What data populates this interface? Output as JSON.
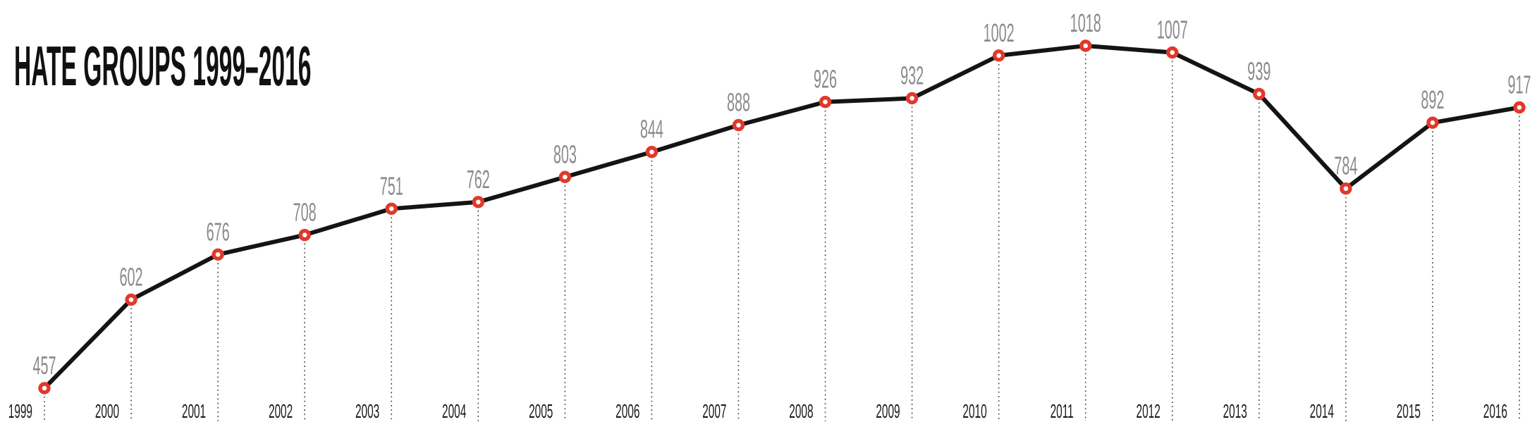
{
  "header": {
    "title": "HATE GROUPS 1999–2016"
  },
  "colors": {
    "background": "#ffffff",
    "title_black": "#111111",
    "trend_line_black": "#141414",
    "marker_red": "#e0392b",
    "marker_fill_white": "#ffffff",
    "value_label_gray": "#8a8a8d",
    "year_label_black": "#1a1a1a",
    "dotted_guide_gray": "#444444"
  },
  "chart_data": {
    "type": "line",
    "title": "HATE GROUPS 1999–2016",
    "categories": [
      "1999",
      "2000",
      "2001",
      "2002",
      "2003",
      "2004",
      "2005",
      "2006",
      "2007",
      "2008",
      "2009",
      "2010",
      "2011",
      "2012",
      "2013",
      "2014",
      "2015",
      "2016"
    ],
    "series": [
      {
        "name": "Hate groups",
        "values": [
          457,
          602,
          676,
          708,
          751,
          762,
          803,
          844,
          888,
          926,
          932,
          1002,
          1018,
          1007,
          939,
          784,
          892,
          917
        ]
      }
    ],
    "xlabel": "",
    "ylabel": "",
    "point_labels_visible": true,
    "marker_style": "open-circle",
    "legend_position": "none",
    "grid": false,
    "y_axis_visible": false,
    "x_tick_style": "year labels with dotted vertical guide line at each data point",
    "data_range": [
      457,
      1018
    ]
  }
}
